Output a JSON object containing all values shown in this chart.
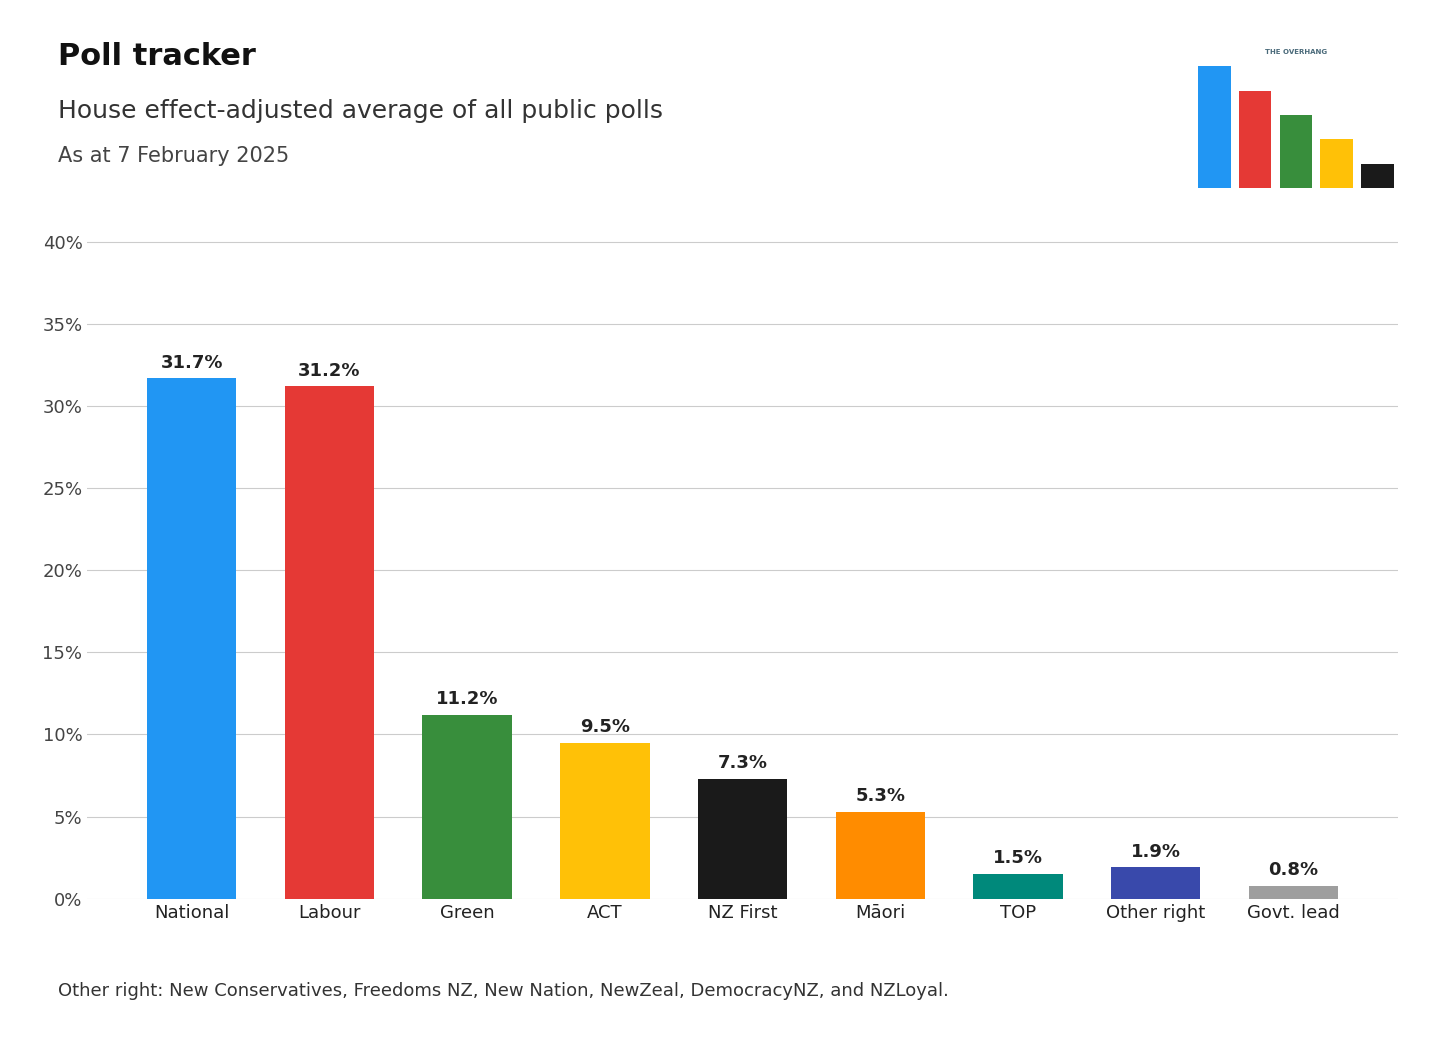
{
  "title": "Poll tracker",
  "subtitle": "House effect-adjusted average of all public polls",
  "date_label": "As at 7 February 2025",
  "footnote": "Other right: New Conservatives, Freedoms NZ, New Nation, NewZeal, DemocracyNZ, and NZLoyal.",
  "categories": [
    "National",
    "Labour",
    "Green",
    "ACT",
    "NZ First",
    "Māori",
    "TOP",
    "Other right",
    "Govt. lead"
  ],
  "values": [
    31.7,
    31.2,
    11.2,
    9.5,
    7.3,
    5.3,
    1.5,
    1.9,
    0.8
  ],
  "colors": [
    "#2196F3",
    "#E53935",
    "#388E3C",
    "#FFC107",
    "#1A1A1A",
    "#FF8C00",
    "#00897B",
    "#3949AB",
    "#9E9E9E"
  ],
  "ylim": [
    0,
    42
  ],
  "yticks": [
    0,
    5,
    10,
    15,
    20,
    25,
    30,
    35,
    40
  ],
  "background_color": "#FFFFFF",
  "title_fontsize": 22,
  "subtitle_fontsize": 18,
  "date_fontsize": 15,
  "bar_label_fontsize": 13,
  "tick_fontsize": 13,
  "footnote_fontsize": 13
}
